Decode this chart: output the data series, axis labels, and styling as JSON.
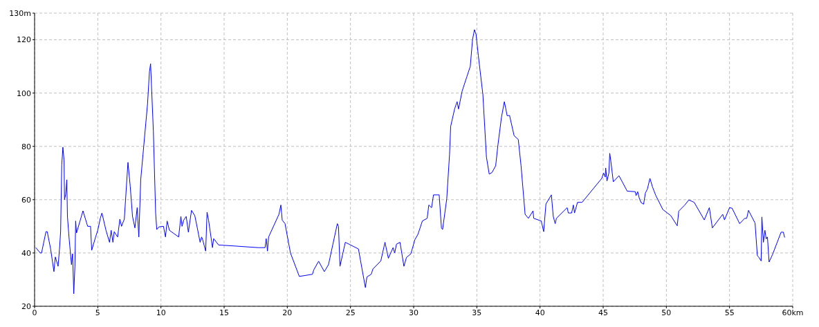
{
  "chart_data": {
    "type": "line",
    "grid": true,
    "xlim": [
      0,
      60
    ],
    "xticks": [
      0,
      5,
      10,
      15,
      20,
      25,
      30,
      35,
      40,
      45,
      50,
      55,
      {
        "value": 60,
        "label": "60km"
      }
    ],
    "ylim": [
      20,
      130
    ],
    "yticks": [
      20,
      40,
      60,
      80,
      100,
      120,
      {
        "value": 130,
        "label": "130m"
      }
    ],
    "x": [
      0.1,
      0.27,
      0.45,
      0.55,
      0.9,
      1.0,
      1.27,
      1.53,
      1.64,
      1.86,
      1.97,
      2.06,
      2.15,
      2.24,
      2.33,
      2.37,
      2.46,
      2.55,
      2.6,
      2.74,
      2.92,
      3.01,
      3.1,
      3.19,
      3.25,
      3.32,
      3.83,
      4.2,
      4.43,
      4.52,
      4.83,
      5.0,
      5.2,
      5.33,
      5.65,
      5.93,
      6.06,
      6.2,
      6.3,
      6.57,
      6.75,
      6.88,
      7.1,
      7.39,
      7.57,
      7.75,
      7.94,
      8.12,
      8.25,
      8.4,
      8.58,
      8.94,
      9.09,
      9.18,
      9.4,
      9.58,
      9.67,
      9.85,
      10.2,
      10.36,
      10.49,
      10.67,
      11.4,
      11.58,
      11.67,
      11.8,
      12.0,
      12.17,
      12.42,
      12.68,
      12.86,
      13.1,
      13.22,
      13.3,
      13.54,
      13.65,
      13.77,
      14.08,
      14.17,
      14.56,
      15.87,
      17.7,
      18.24,
      18.33,
      18.43,
      18.52,
      19.34,
      19.49,
      19.6,
      19.82,
      20.25,
      20.95,
      21.99,
      22.1,
      22.48,
      22.93,
      23.26,
      23.96,
      24.05,
      24.17,
      24.59,
      25.63,
      26.18,
      26.3,
      26.64,
      26.78,
      27.4,
      27.73,
      28.0,
      28.37,
      28.5,
      28.64,
      28.92,
      29.23,
      29.43,
      29.78,
      30.1,
      30.34,
      30.69,
      31.07,
      31.2,
      31.42,
      31.57,
      32.02,
      32.2,
      32.29,
      32.62,
      32.84,
      32.93,
      33.24,
      33.44,
      33.55,
      33.84,
      34.2,
      34.48,
      34.66,
      34.81,
      34.94,
      35.12,
      35.48,
      35.76,
      35.98,
      36.2,
      36.49,
      36.67,
      36.95,
      37.18,
      37.4,
      37.59,
      37.95,
      38.28,
      38.5,
      38.82,
      39.08,
      39.45,
      39.5,
      40.1,
      40.29,
      40.47,
      40.9,
      41.05,
      41.2,
      41.3,
      42.15,
      42.24,
      42.5,
      42.64,
      42.73,
      42.97,
      43.33,
      44.89,
      45.03,
      45.16,
      45.2,
      45.3,
      45.45,
      45.52,
      45.6,
      45.8,
      46.25,
      46.9,
      47.54,
      47.6,
      47.73,
      47.86,
      48.0,
      48.2,
      48.34,
      48.5,
      48.7,
      48.9,
      49.16,
      49.72,
      50.08,
      50.35,
      50.86,
      50.98,
      51.46,
      51.78,
      52.2,
      53.0,
      53.4,
      53.64,
      54.46,
      54.6,
      55.0,
      55.2,
      55.8,
      56.2,
      56.36,
      56.5,
      57.02,
      57.2,
      57.3,
      57.5,
      57.56,
      57.68,
      57.8,
      57.9,
      58.0,
      58.13,
      58.4,
      59.08,
      59.26,
      59.36
    ],
    "values": [
      42,
      41,
      40,
      40,
      48,
      48,
      41.5,
      33,
      38.5,
      35,
      41.5,
      48,
      73,
      79.7,
      74.8,
      60,
      62,
      67.5,
      53.7,
      45,
      35.6,
      39.7,
      24.7,
      35,
      52,
      47.5,
      55.8,
      50,
      50,
      41,
      46,
      48.5,
      53,
      55,
      48.5,
      44,
      48.5,
      44,
      48,
      46,
      52.7,
      50,
      52.7,
      74,
      65,
      53.7,
      49.4,
      57,
      46,
      67.5,
      77,
      96,
      108,
      111,
      85.7,
      55,
      48.8,
      49.8,
      50,
      46,
      52,
      48.5,
      46,
      53.7,
      50,
      52.3,
      53.7,
      47.8,
      56,
      54,
      49.8,
      44,
      46,
      45,
      40.7,
      55.3,
      52.3,
      42,
      45.4,
      43,
      42.6,
      42,
      42,
      45.4,
      40.7,
      46,
      54.5,
      58,
      52.3,
      51,
      40,
      31.2,
      32,
      33.7,
      36.9,
      33,
      35.6,
      51,
      50,
      35,
      44,
      41.5,
      27,
      31,
      32,
      34,
      37,
      44,
      38,
      42,
      40,
      43.3,
      44,
      35,
      38.3,
      39.7,
      45,
      47,
      52,
      53,
      58,
      57,
      61.8,
      61.8,
      49.4,
      48.8,
      60.3,
      77,
      87.5,
      94,
      96.8,
      94,
      100.8,
      106,
      110,
      120,
      123.8,
      122,
      114,
      99.4,
      76,
      69.6,
      70.2,
      72.7,
      80.5,
      90.9,
      96.8,
      91.5,
      91.6,
      84,
      82.6,
      72.7,
      54.5,
      53,
      55.8,
      53,
      52,
      48,
      58.4,
      61.8,
      53.7,
      51,
      53,
      57,
      55,
      55,
      58,
      55,
      59,
      59,
      68,
      70,
      68.5,
      71.9,
      67,
      70,
      77.4,
      74.7,
      66.7,
      69,
      63.2,
      63,
      61.5,
      63,
      60.5,
      58.9,
      58.3,
      62.5,
      64,
      68,
      64.8,
      61.6,
      56.3,
      55,
      54,
      50.2,
      55.7,
      58,
      59.9,
      59,
      52.4,
      57,
      49.4,
      54.5,
      52.4,
      57,
      56.8,
      51,
      53,
      53,
      56,
      51.2,
      39,
      38.5,
      37,
      53.5,
      44,
      48.5,
      45.3,
      46,
      36.6,
      39.4,
      47.8,
      47.8,
      45.8
    ],
    "color": "#0000ff"
  }
}
